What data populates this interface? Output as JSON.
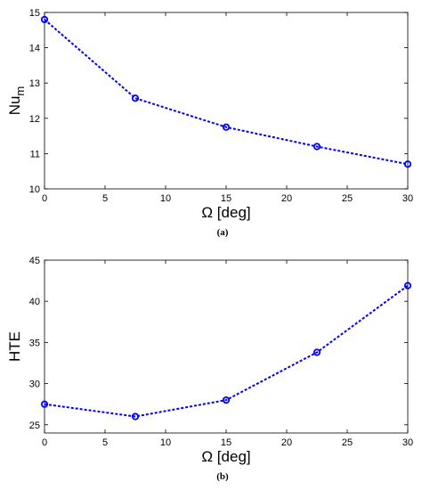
{
  "chart_data": [
    {
      "type": "line",
      "caption": "(a)",
      "xlabel": "Ω [deg]",
      "ylabel": "Nu",
      "ylabel_subscript": "m",
      "xlim": [
        0,
        30
      ],
      "ylim": [
        10,
        15
      ],
      "xticks": [
        0,
        5,
        10,
        15,
        20,
        25,
        30
      ],
      "yticks": [
        10,
        11,
        12,
        13,
        14,
        15
      ],
      "grid": false,
      "series": [
        {
          "x": [
            0,
            7.5,
            15,
            22.5,
            30
          ],
          "y": [
            14.8,
            12.57,
            11.75,
            11.2,
            10.7
          ],
          "color": "#0000ff",
          "line_style": "dashed",
          "marker": "circle"
        }
      ]
    },
    {
      "type": "line",
      "caption": "(b)",
      "xlabel": "Ω [deg]",
      "ylabel": "HTE",
      "xlim": [
        0,
        30
      ],
      "ylim": [
        24,
        45
      ],
      "xticks": [
        0,
        5,
        10,
        15,
        20,
        25,
        30
      ],
      "yticks": [
        25,
        30,
        35,
        40,
        45
      ],
      "grid": false,
      "series": [
        {
          "x": [
            0,
            7.5,
            15,
            22.5,
            30
          ],
          "y": [
            27.5,
            26.0,
            28.0,
            33.8,
            41.9
          ],
          "color": "#0000ff",
          "line_style": "dashed",
          "marker": "circle"
        }
      ]
    }
  ]
}
